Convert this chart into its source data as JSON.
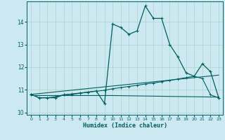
{
  "xlabel": "Humidex (Indice chaleur)",
  "background_color": "#cce8f0",
  "grid_color": "#b0d4c8",
  "line_color": "#006060",
  "xlim": [
    -0.5,
    23.5
  ],
  "ylim": [
    9.9,
    14.9
  ],
  "yticks": [
    10,
    11,
    12,
    13,
    14
  ],
  "xticks": [
    0,
    1,
    2,
    3,
    4,
    5,
    6,
    7,
    8,
    9,
    10,
    11,
    12,
    13,
    14,
    15,
    16,
    17,
    18,
    19,
    20,
    21,
    22,
    23
  ],
  "line1_x": [
    0,
    1,
    2,
    3,
    4,
    5,
    6,
    7,
    8,
    9,
    10,
    11,
    12,
    13,
    14,
    15,
    16,
    17,
    18,
    19,
    20,
    21,
    22,
    23
  ],
  "line1_y": [
    10.8,
    10.65,
    10.65,
    10.65,
    10.78,
    10.8,
    10.85,
    10.9,
    10.95,
    10.4,
    13.9,
    13.75,
    13.45,
    13.6,
    14.7,
    14.15,
    14.15,
    13.0,
    12.45,
    11.75,
    11.6,
    12.15,
    11.8,
    10.65
  ],
  "line2_x": [
    0,
    1,
    2,
    3,
    4,
    5,
    6,
    7,
    8,
    9,
    10,
    11,
    12,
    13,
    14,
    15,
    16,
    17,
    18,
    19,
    20,
    21,
    22,
    23
  ],
  "line2_y": [
    10.8,
    10.65,
    10.65,
    10.7,
    10.78,
    10.82,
    10.86,
    10.9,
    10.94,
    10.98,
    11.05,
    11.1,
    11.15,
    11.2,
    11.26,
    11.3,
    11.36,
    11.42,
    11.48,
    11.54,
    11.6,
    11.5,
    10.78,
    10.65
  ],
  "line3_x": [
    0,
    10,
    23
  ],
  "line3_y": [
    10.75,
    10.75,
    10.68
  ],
  "line4_x": [
    0,
    23
  ],
  "line4_y": [
    10.8,
    11.65
  ]
}
